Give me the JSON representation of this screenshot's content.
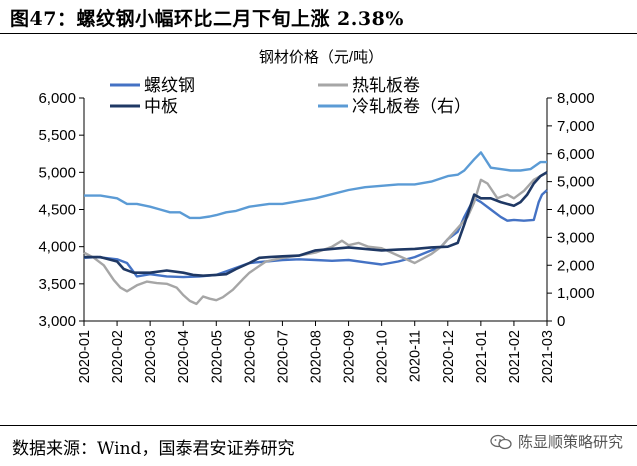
{
  "figure": {
    "title": "图47：螺纹钢小幅环比二月下旬上涨 2.38%",
    "source": "数据来源：Wind，国泰君安证券研究",
    "watermark": "陈显顺策略研究"
  },
  "chart_data": {
    "type": "line",
    "title": "钢材价格（元/吨）",
    "x_ticks": [
      "2020-01",
      "2020-02",
      "2020-03",
      "2020-04",
      "2020-05",
      "2020-06",
      "2020-07",
      "2020-08",
      "2020-09",
      "2020-10",
      "2020-11",
      "2020-12",
      "2021-01",
      "2021-02",
      "2021-03"
    ],
    "y_left": {
      "min": 3000,
      "max": 6000,
      "ticks": [
        "3,000",
        "3,500",
        "4,000",
        "4,500",
        "5,000",
        "5,500",
        "6,000"
      ]
    },
    "y_right": {
      "min": 0,
      "max": 8000,
      "ticks": [
        "0",
        "1,000",
        "2,000",
        "3,000",
        "4,000",
        "5,000",
        "6,000",
        "7,000",
        "8,000"
      ]
    },
    "legend": [
      "螺纹钢",
      "热轧板卷",
      "中板",
      "冷轧板卷（右）"
    ],
    "series": [
      {
        "name": "螺纹钢",
        "axis": "left",
        "color": "#4472c4",
        "width": 2.4,
        "x": [
          0,
          0.4,
          0.8,
          1.0,
          1.3,
          1.6,
          2.0,
          2.5,
          3.0,
          3.5,
          4.0,
          4.5,
          5.0,
          5.5,
          6.0,
          6.5,
          7.0,
          7.5,
          8.0,
          8.5,
          9.0,
          9.5,
          10.0,
          10.5,
          10.8,
          11.0,
          11.3,
          11.5,
          11.8,
          12.0,
          12.3,
          12.6,
          12.8,
          13.0,
          13.3,
          13.6,
          13.75,
          13.85,
          14.0
        ],
        "values": [
          3850,
          3860,
          3840,
          3830,
          3780,
          3600,
          3630,
          3600,
          3590,
          3600,
          3620,
          3700,
          3780,
          3800,
          3820,
          3830,
          3820,
          3810,
          3820,
          3790,
          3760,
          3800,
          3860,
          3950,
          4000,
          4100,
          4200,
          4400,
          4650,
          4600,
          4500,
          4400,
          4350,
          4360,
          4350,
          4360,
          4600,
          4700,
          4760
        ]
      },
      {
        "name": "热轧板卷",
        "axis": "left",
        "color": "#a6a6a6",
        "width": 2.4,
        "x": [
          0,
          0.3,
          0.6,
          0.9,
          1.1,
          1.3,
          1.6,
          1.9,
          2.2,
          2.5,
          2.8,
          3.0,
          3.2,
          3.4,
          3.6,
          3.8,
          4.0,
          4.2,
          4.5,
          4.8,
          5.0,
          5.5,
          6.0,
          6.5,
          7.0,
          7.5,
          7.8,
          8.0,
          8.3,
          8.6,
          9.0,
          9.5,
          10.0,
          10.5,
          10.8,
          11.0,
          11.3,
          11.6,
          11.8,
          12.0,
          12.2,
          12.5,
          12.8,
          13.0,
          13.3,
          13.6,
          13.8,
          14.0
        ],
        "values": [
          3920,
          3850,
          3750,
          3550,
          3450,
          3400,
          3480,
          3530,
          3510,
          3500,
          3450,
          3350,
          3270,
          3230,
          3330,
          3300,
          3280,
          3320,
          3420,
          3560,
          3650,
          3800,
          3850,
          3880,
          3920,
          4000,
          4080,
          4020,
          4050,
          4000,
          3980,
          3880,
          3780,
          3900,
          4000,
          4100,
          4250,
          4400,
          4600,
          4900,
          4850,
          4650,
          4700,
          4650,
          4750,
          4900,
          4950,
          5000
        ]
      },
      {
        "name": "中板",
        "axis": "left",
        "color": "#1f3864",
        "width": 2.6,
        "x": [
          0,
          0.5,
          1.0,
          1.2,
          1.5,
          2.0,
          2.5,
          3.0,
          3.3,
          3.6,
          4.0,
          4.3,
          4.6,
          5.0,
          5.3,
          5.6,
          6.0,
          6.5,
          7.0,
          7.5,
          8.0,
          8.5,
          9.0,
          9.5,
          10.0,
          10.5,
          11.0,
          11.3,
          11.5,
          11.8,
          12.0,
          12.3,
          12.6,
          13.0,
          13.2,
          13.4,
          13.6,
          13.8,
          14.0
        ],
        "values": [
          3860,
          3860,
          3800,
          3700,
          3650,
          3650,
          3680,
          3650,
          3620,
          3610,
          3620,
          3630,
          3700,
          3780,
          3850,
          3860,
          3870,
          3880,
          3950,
          3970,
          3990,
          3970,
          3950,
          3960,
          3970,
          3990,
          4000,
          4050,
          4300,
          4700,
          4650,
          4650,
          4600,
          4550,
          4600,
          4700,
          4850,
          4950,
          5000
        ]
      },
      {
        "name": "冷轧板卷（右）",
        "axis": "right",
        "color": "#5b9bd5",
        "width": 2.4,
        "x": [
          0,
          0.5,
          1.0,
          1.3,
          1.6,
          2.0,
          2.3,
          2.6,
          2.9,
          3.2,
          3.5,
          3.8,
          4.0,
          4.3,
          4.6,
          5.0,
          5.3,
          5.6,
          6.0,
          6.5,
          7.0,
          7.5,
          8.0,
          8.5,
          9.0,
          9.5,
          10.0,
          10.5,
          11.0,
          11.3,
          11.5,
          11.8,
          12.0,
          12.3,
          12.6,
          12.9,
          13.2,
          13.5,
          13.8,
          14.0
        ],
        "values": [
          4500,
          4500,
          4400,
          4200,
          4200,
          4100,
          4000,
          3900,
          3900,
          3700,
          3700,
          3750,
          3800,
          3900,
          3950,
          4100,
          4150,
          4200,
          4200,
          4300,
          4400,
          4550,
          4700,
          4800,
          4850,
          4900,
          4900,
          5000,
          5200,
          5250,
          5400,
          5800,
          6050,
          5500,
          5450,
          5400,
          5400,
          5450,
          5700,
          5700
        ]
      }
    ]
  }
}
